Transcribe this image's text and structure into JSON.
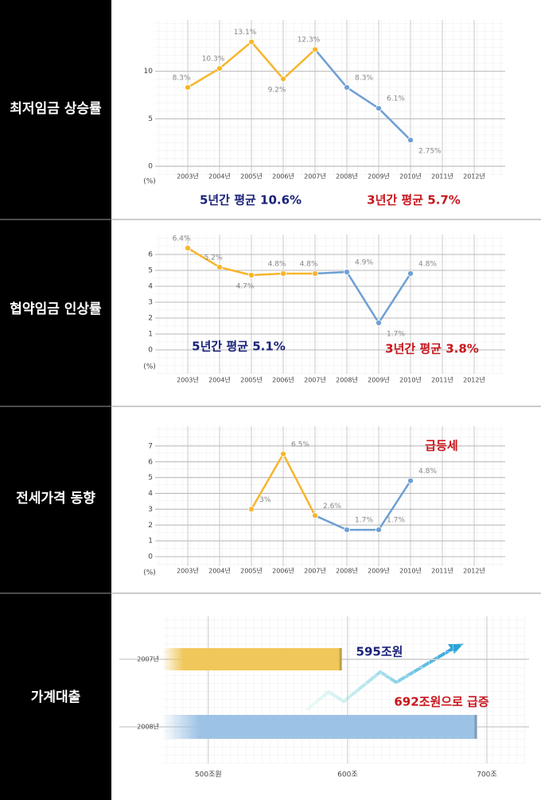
{
  "chart_data": [
    {
      "type": "line",
      "title": "최저임금 상승률",
      "categories": [
        "2003년",
        "2004년",
        "2005년",
        "2006년",
        "2007년",
        "2008년",
        "2009년",
        "2010년",
        "2011년",
        "2012년"
      ],
      "values": [
        8.3,
        10.3,
        13.1,
        9.2,
        12.3,
        8.3,
        6.1,
        2.75,
        null,
        null
      ],
      "value_labels": [
        "8.3%",
        "10.3%",
        "13.1%",
        "9.2%",
        "12.3%",
        "8.3%",
        "6.1%",
        "2.75%",
        null,
        null
      ],
      "colors": [
        "#f7b52c",
        "#f7b52c",
        "#f7b52c",
        "#f7b52c",
        "#f7b52c",
        "#6e9fd3",
        "#6e9fd3",
        "#6e9fd3",
        null,
        null
      ],
      "ylim": [
        0,
        15
      ],
      "yticks": [
        0,
        5,
        10
      ],
      "ylabel": "(%)",
      "grid": true,
      "annotations": [
        {
          "text": "5년간 평균 10.6%",
          "color": "#1b237a"
        },
        {
          "text": "3년간 평균 5.7%",
          "color": "#c8161d"
        }
      ]
    },
    {
      "type": "line",
      "title": "협약임금 인상률",
      "categories": [
        "2003년",
        "2004년",
        "2005년",
        "2006년",
        "2007년",
        "2008년",
        "2009년",
        "2010년",
        "2011년",
        "2012년"
      ],
      "values": [
        6.4,
        5.2,
        4.7,
        4.8,
        4.8,
        4.9,
        1.7,
        4.8,
        null,
        null
      ],
      "value_labels": [
        "6.4%",
        "5.2%",
        "4.7%",
        "4.8%",
        "4.8%",
        "4.9%",
        "1.7%",
        "4.8%",
        null,
        null
      ],
      "colors": [
        "#f7b52c",
        "#f7b52c",
        "#f7b52c",
        "#f7b52c",
        "#f7b52c",
        "#6e9fd3",
        "#6e9fd3",
        "#6e9fd3",
        null,
        null
      ],
      "ylim": [
        0,
        7
      ],
      "yticks": [
        0,
        1,
        2,
        3,
        4,
        5,
        6
      ],
      "ylabel": "(%)",
      "grid": true,
      "annotations": [
        {
          "text": "5년간 평균 5.1%",
          "color": "#1b237a"
        },
        {
          "text": "3년간 평균 3.8%",
          "color": "#c8161d"
        }
      ]
    },
    {
      "type": "line",
      "title": "전세가격 동향",
      "categories": [
        "2003년",
        "2004년",
        "2005년",
        "2006년",
        "2007년",
        "2008년",
        "2009년",
        "2010년",
        "2011년",
        "2012년"
      ],
      "values": [
        null,
        null,
        3,
        6.5,
        2.6,
        1.7,
        1.7,
        4.8,
        null,
        null
      ],
      "value_labels": [
        null,
        null,
        "3%",
        "6.5%",
        "2.6%",
        "1.7%",
        "1.7%",
        "4.8%",
        null,
        null
      ],
      "colors": [
        null,
        null,
        "#f7b52c",
        "#f7b52c",
        "#f7b52c",
        "#6e9fd3",
        "#6e9fd3",
        "#6e9fd3",
        null,
        null
      ],
      "ylim": [
        0,
        8
      ],
      "yticks": [
        0,
        1,
        2,
        3,
        4,
        5,
        6,
        7
      ],
      "ylabel": "(%)",
      "grid": true,
      "annotations": [
        {
          "text": "급등세",
          "color": "#c8161d"
        }
      ]
    },
    {
      "type": "hbar",
      "title": "가계대출",
      "categories": [
        "2007년",
        "2008년"
      ],
      "values": [
        595,
        692
      ],
      "colors": [
        "#f0c75a",
        "#9cc2e5"
      ],
      "xlim": [
        467,
        720
      ],
      "xticks": [
        {
          "value": 500,
          "label": "500조원"
        },
        {
          "value": 600,
          "label": "600조"
        },
        {
          "value": 700,
          "label": "700조"
        }
      ],
      "grid": true,
      "annotations": [
        {
          "text": "595조원",
          "color": "#1b237a"
        },
        {
          "text": "692조원으로 급증",
          "color": "#c8161d"
        }
      ]
    }
  ]
}
